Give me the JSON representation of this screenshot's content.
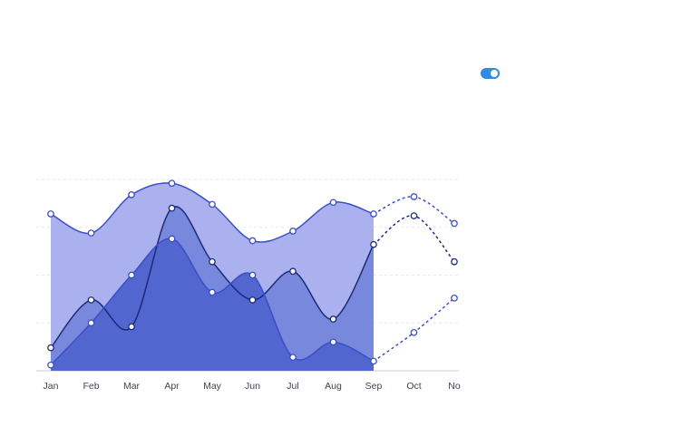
{
  "toggle": {
    "state": "on",
    "color": "#2f8ae8"
  },
  "chart_data": {
    "type": "area",
    "categories": [
      "Jan",
      "Feb",
      "Mar",
      "Apr",
      "May",
      "Jun",
      "Jul",
      "Aug",
      "Sep",
      "Oct",
      "No"
    ],
    "ylim": [
      0,
      100
    ],
    "grid": "horizontal-dashed",
    "title": "",
    "xlabel": "",
    "ylabel": "",
    "forecast_from": "Sep",
    "series": [
      {
        "values": [
          82,
          72,
          92,
          98,
          87,
          68,
          73,
          88,
          82,
          91,
          77
        ],
        "stroke": "#3a4fc8",
        "fill": "#aab1ee"
      },
      {
        "values": [
          12,
          37,
          23,
          85,
          57,
          37,
          52,
          27,
          66,
          81,
          57
        ],
        "stroke": "#1c2a7a",
        "fill": "#7888dc"
      },
      {
        "values": [
          3,
          25,
          50,
          69,
          41,
          50,
          7,
          15,
          5,
          20,
          38
        ],
        "stroke": "#3a4fc8",
        "fill": "#5266d0"
      }
    ]
  }
}
